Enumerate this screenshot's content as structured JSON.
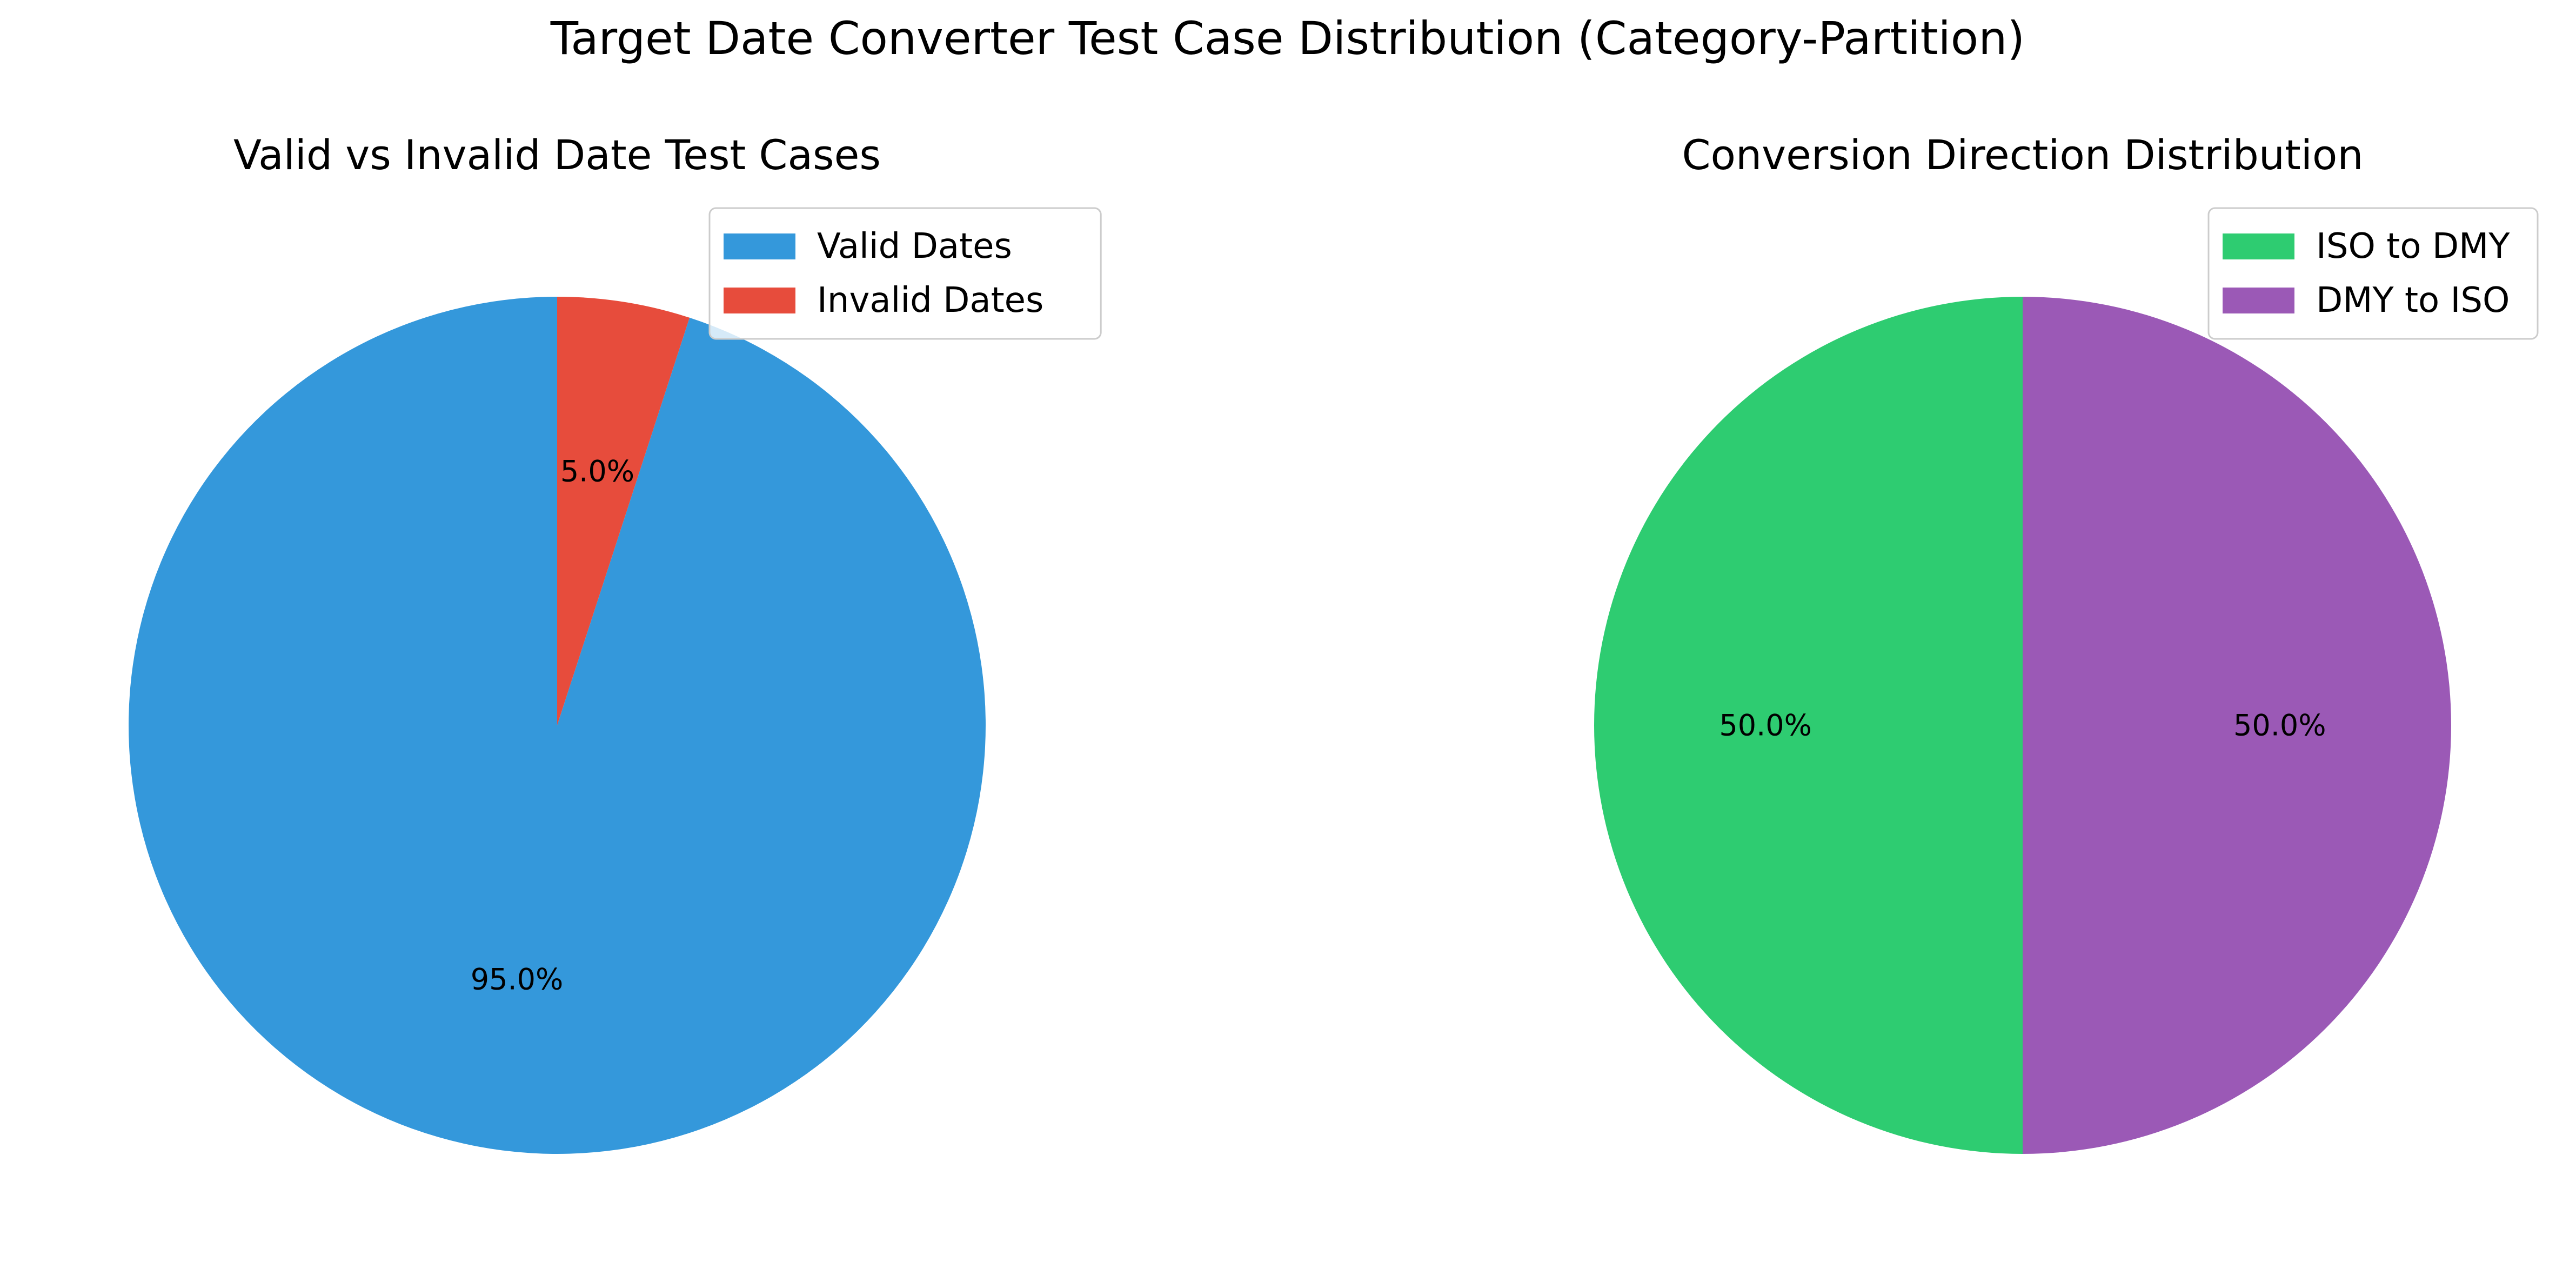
{
  "figure": {
    "title": "Target Date Converter Test Case Distribution (Category-Partition)"
  },
  "chart_data": [
    {
      "type": "pie",
      "title": "Valid vs Invalid Date Test Cases",
      "legend_position": "top-right",
      "start_angle_deg": 90,
      "direction": "counterclockwise",
      "slices": [
        {
          "label": "Valid Dates",
          "value": 95.0,
          "pct_label": "95.0%",
          "color": "#3498db"
        },
        {
          "label": "Invalid Dates",
          "value": 5.0,
          "pct_label": "5.0%",
          "color": "#e74c3c"
        }
      ]
    },
    {
      "type": "pie",
      "title": "Conversion Direction Distribution",
      "legend_position": "top-right",
      "start_angle_deg": 90,
      "direction": "counterclockwise",
      "slices": [
        {
          "label": "ISO to DMY",
          "value": 50.0,
          "pct_label": "50.0%",
          "color": "#2ecc71"
        },
        {
          "label": "DMY to ISO",
          "value": 50.0,
          "pct_label": "50.0%",
          "color": "#9b59b6"
        }
      ]
    }
  ]
}
